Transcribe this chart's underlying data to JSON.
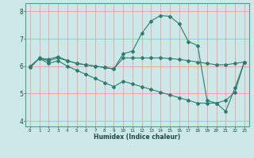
{
  "xlabel": "Humidex (Indice chaleur)",
  "background_color": "#cce8e8",
  "grid_color": "#e8aaaa",
  "line_color": "#2e7d6e",
  "xlim": [
    -0.5,
    23.5
  ],
  "ylim": [
    3.8,
    8.3
  ],
  "yticks": [
    4,
    5,
    6,
    7,
    8
  ],
  "xticks": [
    0,
    1,
    2,
    3,
    4,
    5,
    6,
    7,
    8,
    9,
    10,
    11,
    12,
    13,
    14,
    15,
    16,
    17,
    18,
    19,
    20,
    21,
    22,
    23
  ],
  "series1_x": [
    0,
    1,
    2,
    3,
    4,
    5,
    6,
    7,
    8,
    9,
    10,
    11,
    12,
    13,
    14,
    15,
    16,
    17,
    18,
    19,
    20,
    21,
    22,
    23
  ],
  "series1_y": [
    5.95,
    6.3,
    6.25,
    6.35,
    6.2,
    6.1,
    6.05,
    6.0,
    5.95,
    5.9,
    6.45,
    6.55,
    7.2,
    7.65,
    7.85,
    7.82,
    7.55,
    6.9,
    6.75,
    4.75,
    4.65,
    4.35,
    5.2,
    6.15
  ],
  "series2_x": [
    0,
    1,
    2,
    3,
    4,
    5,
    6,
    7,
    8,
    9,
    10,
    11,
    12,
    13,
    14,
    15,
    16,
    17,
    18,
    19,
    20,
    21,
    22,
    23
  ],
  "series2_y": [
    6.0,
    6.28,
    6.2,
    6.3,
    6.2,
    6.1,
    6.05,
    6.0,
    5.95,
    5.9,
    6.3,
    6.3,
    6.3,
    6.3,
    6.3,
    6.28,
    6.25,
    6.2,
    6.15,
    6.1,
    6.05,
    6.05,
    6.1,
    6.15
  ],
  "series3_x": [
    0,
    1,
    2,
    3,
    4,
    5,
    6,
    7,
    8,
    9,
    10,
    11,
    12,
    13,
    14,
    15,
    16,
    17,
    18,
    19,
    20,
    21,
    22,
    23
  ],
  "series3_y": [
    5.95,
    6.28,
    6.1,
    6.2,
    6.0,
    5.85,
    5.7,
    5.55,
    5.4,
    5.25,
    5.45,
    5.35,
    5.25,
    5.15,
    5.05,
    4.95,
    4.85,
    4.75,
    4.65,
    4.65,
    4.65,
    4.75,
    5.05,
    6.15
  ]
}
